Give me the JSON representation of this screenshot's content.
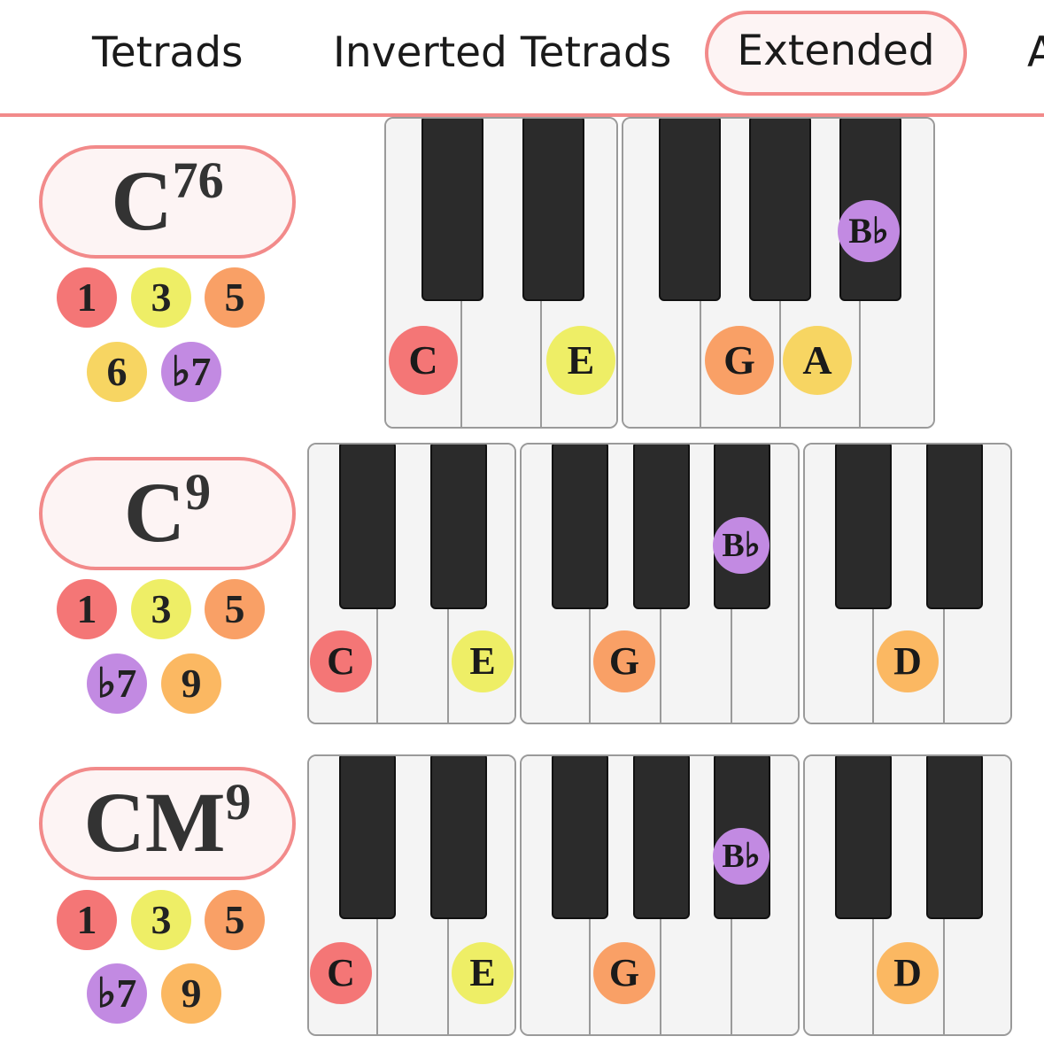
{
  "tabs": [
    {
      "label": "Tetrads",
      "active": false
    },
    {
      "label": "Inverted Tetrads",
      "active": false
    },
    {
      "label": "Extended",
      "active": true
    },
    {
      "label": "A",
      "active": false
    }
  ],
  "colors": {
    "accent": "#f28a8a",
    "pill_bg": "#fdf4f4",
    "degree_1": "#f47676",
    "degree_3": "#eeee66",
    "degree_5": "#f9a066",
    "degree_6": "#f7d562",
    "degree_b7": "#c28ae2",
    "degree_9": "#fbb862",
    "black_key": "#2b2b2b",
    "white_key": "#f4f4f4"
  },
  "chords": [
    {
      "root": "C",
      "suffix": "76",
      "degrees": [
        {
          "label": "1",
          "color": "#f47676"
        },
        {
          "label": "3",
          "color": "#eeee66"
        },
        {
          "label": "5",
          "color": "#f9a066"
        },
        {
          "label": "6",
          "color": "#f7d562"
        },
        {
          "label": "♭7",
          "color": "#c28ae2"
        }
      ],
      "notes": [
        {
          "label": "C",
          "color": "#f47676",
          "key": "white"
        },
        {
          "label": "E",
          "color": "#eeee66",
          "key": "white"
        },
        {
          "label": "G",
          "color": "#f9a066",
          "key": "white"
        },
        {
          "label": "A",
          "color": "#f7d562",
          "key": "white"
        },
        {
          "label": "B♭",
          "color": "#c28ae2",
          "key": "black"
        }
      ]
    },
    {
      "root": "C",
      "suffix": "9",
      "degrees": [
        {
          "label": "1",
          "color": "#f47676"
        },
        {
          "label": "3",
          "color": "#eeee66"
        },
        {
          "label": "5",
          "color": "#f9a066"
        },
        {
          "label": "♭7",
          "color": "#c28ae2"
        },
        {
          "label": "9",
          "color": "#fbb862"
        }
      ],
      "notes": [
        {
          "label": "C",
          "color": "#f47676",
          "key": "white"
        },
        {
          "label": "E",
          "color": "#eeee66",
          "key": "white"
        },
        {
          "label": "G",
          "color": "#f9a066",
          "key": "white"
        },
        {
          "label": "B♭",
          "color": "#c28ae2",
          "key": "black"
        },
        {
          "label": "D",
          "color": "#fbb862",
          "key": "white"
        }
      ]
    },
    {
      "root": "CM",
      "suffix": "9",
      "degrees": [
        {
          "label": "1",
          "color": "#f47676"
        },
        {
          "label": "3",
          "color": "#eeee66"
        },
        {
          "label": "5",
          "color": "#f9a066"
        },
        {
          "label": "♭7",
          "color": "#c28ae2"
        },
        {
          "label": "9",
          "color": "#fbb862"
        }
      ],
      "notes": [
        {
          "label": "C",
          "color": "#f47676",
          "key": "white"
        },
        {
          "label": "E",
          "color": "#eeee66",
          "key": "white"
        },
        {
          "label": "G",
          "color": "#f9a066",
          "key": "white"
        },
        {
          "label": "B♭",
          "color": "#c28ae2",
          "key": "black"
        },
        {
          "label": "D",
          "color": "#fbb862",
          "key": "white"
        }
      ]
    }
  ]
}
